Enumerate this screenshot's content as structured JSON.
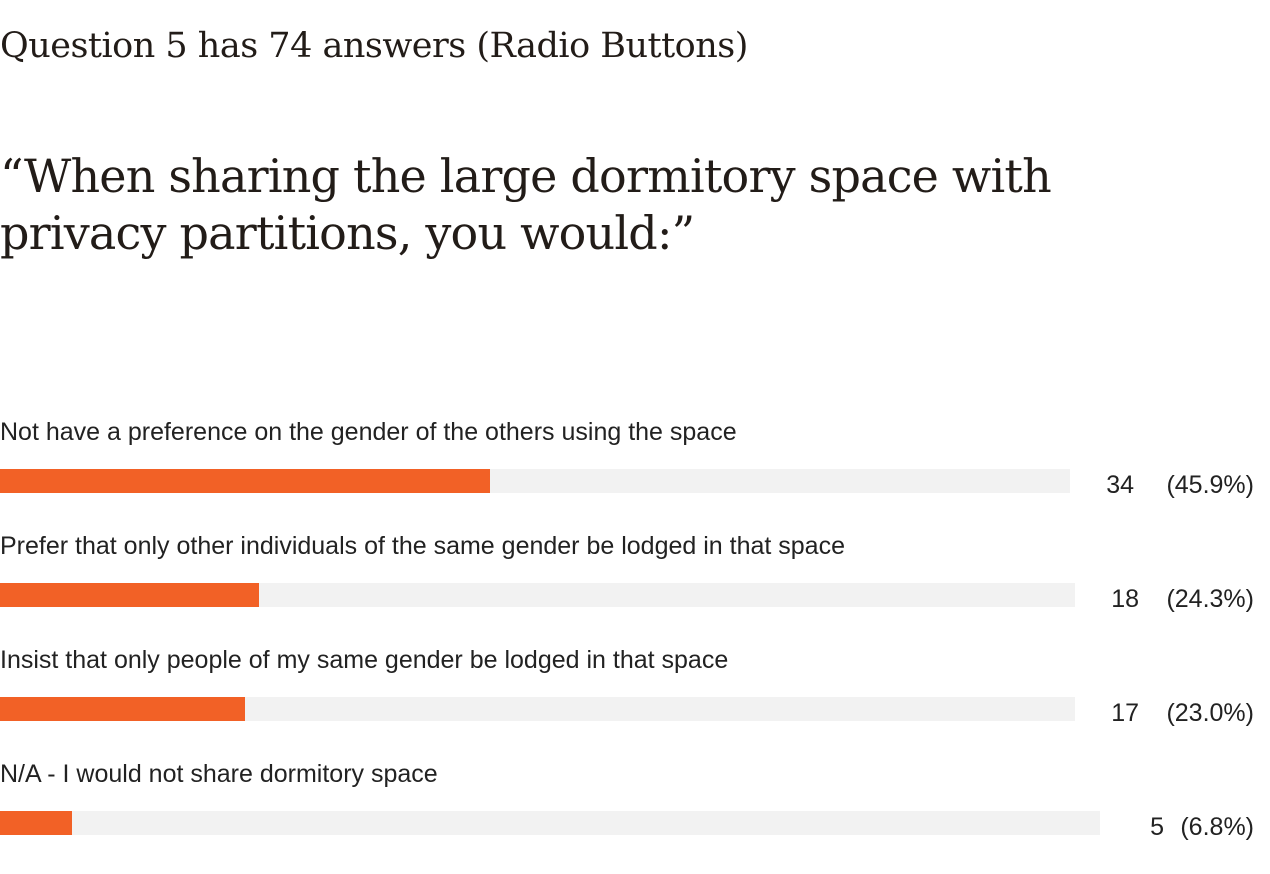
{
  "header": {
    "title": "Question 5 has 74 answers (Radio Buttons)"
  },
  "question": {
    "text": "“When sharing the large dormitory space with privacy partitions, you would:”"
  },
  "colors": {
    "bar_fill": "#f26126",
    "bar_track": "#f2f2f2",
    "text": "#222222"
  },
  "chart_data": {
    "type": "bar",
    "orientation": "horizontal",
    "total": 74,
    "categories": [
      "Not have a preference on the gender of the others using the space",
      "Prefer that only other individuals of the same gender be lodged in that space",
      "Insist that only people of my same gender be lodged in that space",
      "N/A - I would not share dormitory space"
    ],
    "values": [
      34,
      18,
      17,
      5
    ],
    "percent_labels": [
      "(45.9%)",
      "(24.3%)",
      "(23.0%)",
      "(6.8%)"
    ],
    "count_labels": [
      "34",
      "18",
      "17",
      "5"
    ]
  }
}
